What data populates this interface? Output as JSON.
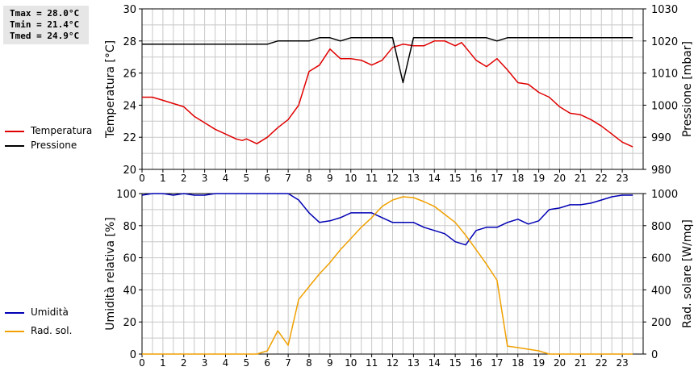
{
  "stats": {
    "tmax": "Tmax = 28.0°C",
    "tmin": "Tmin = 21.4°C",
    "tmed": "Tmed = 24.9°C"
  },
  "colors": {
    "temperature": "#e00000",
    "pressure": "#000000",
    "humidity": "#0000b4",
    "radiation": "#f0a000",
    "grid": "#c8c8c8"
  },
  "legend_top": [
    {
      "label": "Temperatura",
      "color": "#e00000"
    },
    {
      "label": "Pressione",
      "color": "#000000"
    }
  ],
  "legend_bottom": [
    {
      "label": "Umidità",
      "color": "#0000b4"
    },
    {
      "label": "Rad. sol.",
      "color": "#f0a000"
    }
  ],
  "chart_data": [
    {
      "type": "line",
      "x_ticks": [
        "0",
        "1",
        "2",
        "3",
        "4",
        "5",
        "6",
        "7",
        "8",
        "9",
        "10",
        "11",
        "12",
        "13",
        "14",
        "15",
        "16",
        "17",
        "18",
        "19",
        "20",
        "21",
        "22",
        "23"
      ],
      "xlim": [
        0,
        24
      ],
      "ylabel": "Temperatura [°C]",
      "ylabel_right": "Pressione [mbar]",
      "ylim": [
        20,
        30
      ],
      "y_ticks": [
        "20",
        "22",
        "24",
        "26",
        "28",
        "30"
      ],
      "ylim_right": [
        980,
        1030
      ],
      "y_ticks_right": [
        "980",
        "990",
        "1000",
        "1010",
        "1020",
        "1030"
      ],
      "grid": true,
      "series": [
        {
          "name": "Temperatura",
          "axis": "left",
          "color": "#e00000",
          "x": [
            0,
            0.5,
            1,
            1.5,
            2,
            2.5,
            3,
            3.5,
            4,
            4.5,
            4.8,
            5,
            5.5,
            6,
            6.5,
            7,
            7.5,
            8,
            8.5,
            9,
            9.5,
            10,
            10.5,
            11,
            11.5,
            12,
            12.5,
            13,
            13.5,
            14,
            14.5,
            15,
            15.3,
            15.5,
            16,
            16.5,
            17,
            17.5,
            18,
            18.5,
            19,
            19.5,
            20,
            20.5,
            21,
            21.5,
            22,
            22.5,
            23,
            23.5
          ],
          "y": [
            24.5,
            24.5,
            24.3,
            24.1,
            23.9,
            23.3,
            22.9,
            22.5,
            22.2,
            21.9,
            21.8,
            21.9,
            21.6,
            22.0,
            22.6,
            23.1,
            24.0,
            26.1,
            26.5,
            27.5,
            26.9,
            26.9,
            26.8,
            26.5,
            26.8,
            27.6,
            27.8,
            27.7,
            27.7,
            28.0,
            28.0,
            27.7,
            27.9,
            27.6,
            26.8,
            26.4,
            26.9,
            26.2,
            25.4,
            25.3,
            24.8,
            24.5,
            23.9,
            23.5,
            23.4,
            23.1,
            22.7,
            22.2,
            21.7,
            21.4
          ]
        },
        {
          "name": "Pressione",
          "axis": "right",
          "color": "#000000",
          "x": [
            0,
            6,
            6.5,
            7,
            8,
            8.5,
            9,
            9.5,
            10,
            11,
            12,
            12.5,
            13,
            14,
            15,
            16,
            16.5,
            17,
            17.5,
            18,
            19,
            20,
            21,
            22,
            23,
            23.5
          ],
          "y": [
            1019,
            1019,
            1020,
            1020,
            1020,
            1021,
            1021,
            1020,
            1021,
            1021,
            1021,
            1007,
            1021,
            1021,
            1021,
            1021,
            1021,
            1020,
            1021,
            1021,
            1021,
            1021,
            1021,
            1021,
            1021,
            1021
          ]
        }
      ]
    },
    {
      "type": "line",
      "x_ticks": [
        "0",
        "1",
        "2",
        "3",
        "4",
        "5",
        "6",
        "7",
        "8",
        "9",
        "10",
        "11",
        "12",
        "13",
        "14",
        "15",
        "16",
        "17",
        "18",
        "19",
        "20",
        "21",
        "22",
        "23"
      ],
      "xlim": [
        0,
        24
      ],
      "ylabel": "Umidità relativa [%]",
      "ylabel_right": "Rad. solare [W/mq]",
      "ylim": [
        0,
        100
      ],
      "y_ticks": [
        "0",
        "20",
        "40",
        "60",
        "80",
        "100"
      ],
      "ylim_right": [
        0,
        1000
      ],
      "y_ticks_right": [
        "0",
        "200",
        "400",
        "600",
        "800",
        "1000"
      ],
      "grid": true,
      "series": [
        {
          "name": "Umidità",
          "axis": "left",
          "color": "#0000b4",
          "x": [
            0,
            0.5,
            1,
            1.5,
            2,
            2.5,
            3,
            3.5,
            4,
            5,
            6,
            7,
            7.5,
            8,
            8.5,
            9,
            9.5,
            10,
            10.5,
            11,
            11.5,
            12,
            12.5,
            13,
            13.5,
            14,
            14.5,
            15,
            15.5,
            16,
            16.5,
            17,
            17.5,
            18,
            18.5,
            19,
            19.5,
            20,
            20.5,
            21,
            21.5,
            22,
            22.5,
            23,
            23.5
          ],
          "y": [
            99,
            100,
            100,
            99,
            100,
            99,
            99,
            100,
            100,
            100,
            100,
            100,
            96,
            88,
            82,
            83,
            85,
            88,
            88,
            88,
            85,
            82,
            82,
            82,
            79,
            77,
            75,
            70,
            68,
            77,
            79,
            79,
            82,
            84,
            81,
            83,
            90,
            91,
            93,
            93,
            94,
            96,
            98,
            99,
            99
          ]
        },
        {
          "name": "Rad. sol.",
          "axis": "right",
          "color": "#f0a000",
          "x": [
            0,
            1,
            2,
            3,
            4,
            5,
            5.5,
            6,
            6.5,
            7,
            7.5,
            8,
            8.5,
            9,
            9.5,
            10,
            10.5,
            11,
            11.5,
            12,
            12.5,
            13,
            13.5,
            14,
            14.5,
            15,
            15.5,
            16,
            16.5,
            17,
            17.5,
            18,
            18.5,
            19,
            19.5,
            20,
            21,
            22,
            23,
            23.5
          ],
          "y": [
            0,
            0,
            0,
            0,
            0,
            0,
            0,
            20,
            145,
            55,
            340,
            420,
            500,
            570,
            650,
            720,
            790,
            850,
            920,
            960,
            980,
            975,
            950,
            920,
            870,
            820,
            740,
            650,
            560,
            460,
            50,
            40,
            30,
            20,
            0,
            0,
            0,
            0,
            0,
            0
          ]
        }
      ]
    }
  ]
}
